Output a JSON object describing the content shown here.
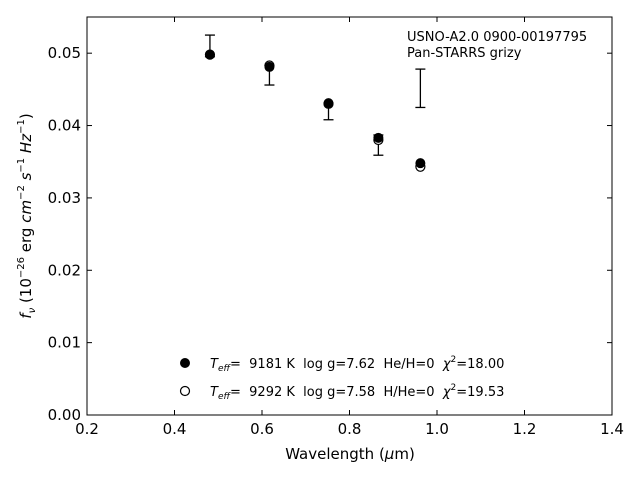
{
  "chart_data": {
    "type": "scatter",
    "title": "",
    "xlabel": "Wavelength (μm)",
    "ylabel": "f_ν (10^−26 erg cm^−2 s^−1 Hz^−1)",
    "xlim": [
      0.2,
      1.4
    ],
    "ylim": [
      0.0,
      0.055
    ],
    "xticks": [
      "0.2",
      "0.4",
      "0.6",
      "0.8",
      "1.0",
      "1.2",
      "1.4"
    ],
    "yticks": [
      "0.00",
      "0.01",
      "0.02",
      "0.03",
      "0.04",
      "0.05"
    ],
    "annotation": [
      "USNO-A2.0 0900-00197795",
      "Pan-STARRS grizy"
    ],
    "observed": {
      "marker": "errorbar",
      "points": [
        {
          "x": 0.481,
          "low": 0.0495,
          "high": 0.0525
        },
        {
          "x": 0.617,
          "low": 0.0456,
          "high": 0.0483
        },
        {
          "x": 0.752,
          "low": 0.0408,
          "high": 0.0431
        },
        {
          "x": 0.866,
          "low": 0.0359,
          "high": 0.0387
        },
        {
          "x": 0.962,
          "low": 0.0425,
          "high": 0.0478
        }
      ]
    },
    "series": [
      {
        "name": "T_eff= 9181 K log g=7.62 He/H=0 χ²=18.00",
        "marker": "filled-circle",
        "x": [
          0.481,
          0.617,
          0.752,
          0.866,
          0.962
        ],
        "y": [
          0.0498,
          0.0481,
          0.0431,
          0.0383,
          0.0348
        ]
      },
      {
        "name": "T_eff= 9292 K log g=7.58 H/He=0 χ²=19.53",
        "marker": "open-circle",
        "x": [
          0.481,
          0.617,
          0.752,
          0.866,
          0.962
        ],
        "y": [
          0.0498,
          0.0483,
          0.043,
          0.038,
          0.0343
        ]
      }
    ],
    "legend": {
      "placement": "lower-center",
      "entries": [
        {
          "teff_label": "T",
          "teff_sub": "eff",
          "text1": "=  9181 K  log g=7.62  He/H=0  ",
          "chi": "χ",
          "chi_sup": "2",
          "text2": "=18.00"
        },
        {
          "teff_label": "T",
          "teff_sub": "eff",
          "text1": "=  9292 K  log g=7.58  H/He=0  ",
          "chi": "χ",
          "chi_sup": "2",
          "text2": "=19.53"
        }
      ]
    },
    "xlabel_parts": {
      "main": "Wavelength (",
      "mu": "μ",
      "rest": "m)"
    },
    "ylabel_parts": {
      "f": "f",
      "nu": "ν",
      "open": " (10",
      "e1": "−26",
      "erg": " erg ",
      "cm": "cm",
      "e2": "−2",
      "s": " s",
      "e3": "−1",
      "hz": " Hz",
      "e4": "−1",
      "close": ")"
    }
  }
}
